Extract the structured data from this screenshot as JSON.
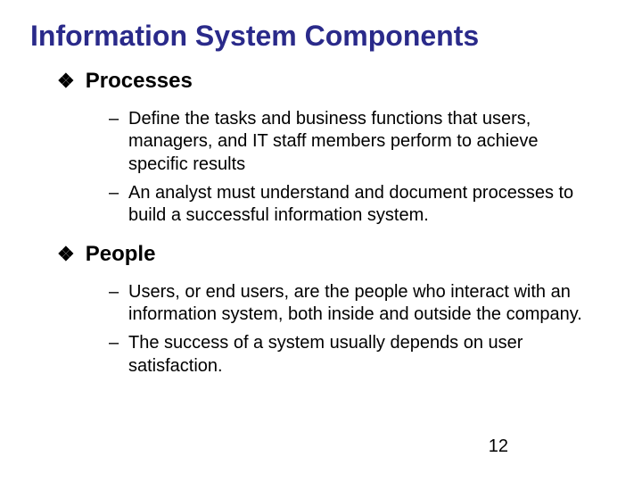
{
  "title": "Information System Components",
  "title_color": "#2a2a8a",
  "title_fontsize": 32,
  "body_fontsize_heading": 24,
  "body_fontsize_item": 20,
  "bullet_glyph": "❖",
  "dash_glyph": "–",
  "background_color": "#ffffff",
  "text_color": "#000000",
  "page_number": "12",
  "sections": [
    {
      "heading": "Processes",
      "items": [
        "Define the tasks and business functions that users, managers, and IT staff members perform to achieve specific results",
        "An analyst must understand and document processes to build a successful information system."
      ]
    },
    {
      "heading": "People",
      "items": [
        "Users, or end users, are the people who interact with an information system, both inside and outside the company.",
        "The success of a system usually depends on user satisfaction."
      ]
    }
  ]
}
